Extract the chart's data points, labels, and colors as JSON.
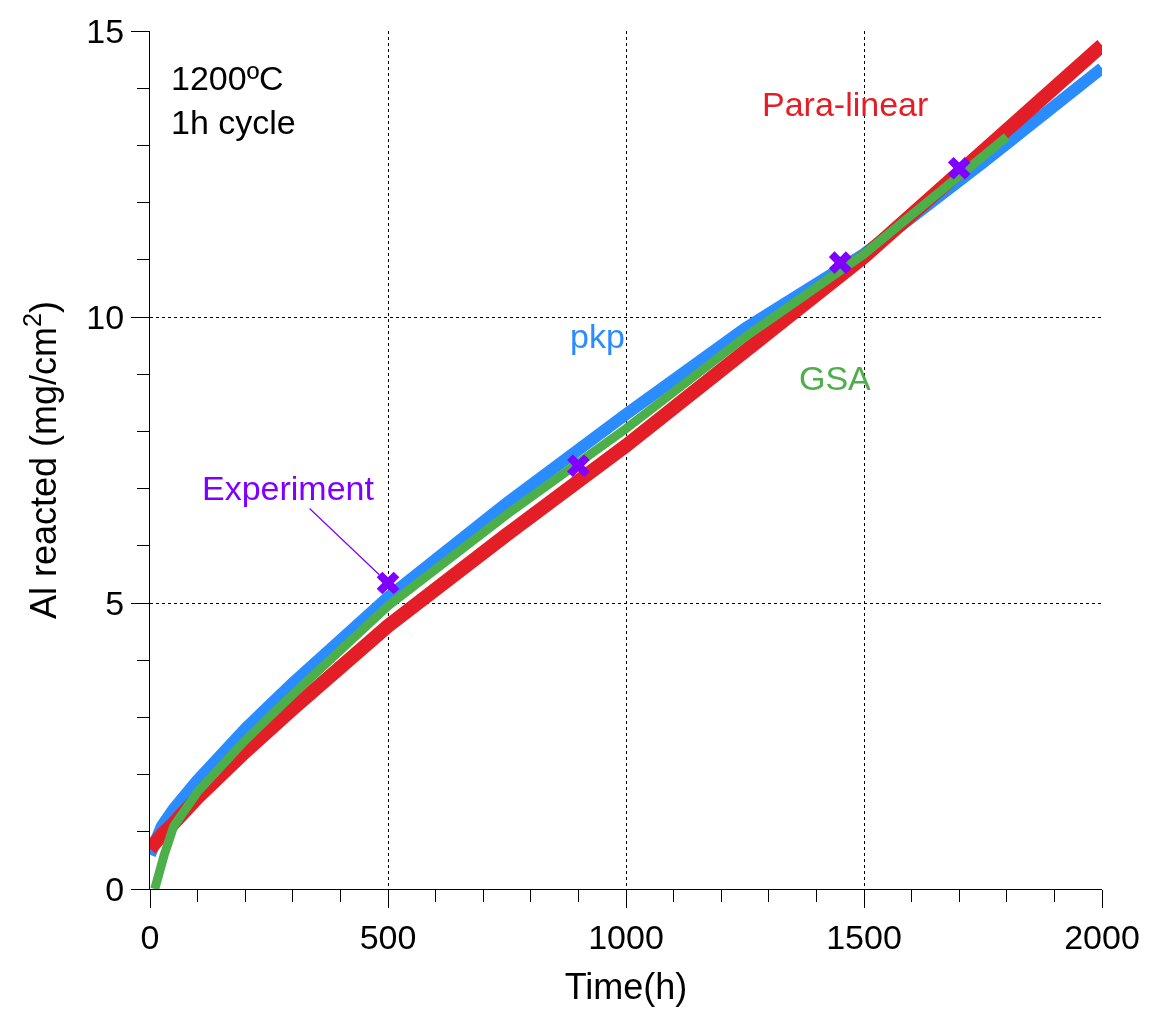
{
  "chart_data": {
    "type": "line",
    "xlabel": "Time(h)",
    "ylabel": "Al reacted (mg/cm$^{2}$)",
    "annotations": [
      "1200ºC\n1h cycle"
    ],
    "xlim": [
      0,
      2000
    ],
    "ylim": [
      0,
      15
    ],
    "xticks": [
      0,
      {
        "value": 100,
        "label": null
      },
      {
        "value": 200,
        "label": null
      },
      {
        "value": 300,
        "label": null
      },
      {
        "value": 400,
        "label": null
      },
      500,
      {
        "value": 600,
        "label": null
      },
      {
        "value": 700,
        "label": null
      },
      {
        "value": 800,
        "label": null
      },
      {
        "value": 900,
        "label": null
      },
      1000,
      {
        "value": 1100,
        "label": null
      },
      {
        "value": 1200,
        "label": null
      },
      {
        "value": 1300,
        "label": null
      },
      {
        "value": 1400,
        "label": null
      },
      1500,
      {
        "value": 1600,
        "label": null
      },
      {
        "value": 1700,
        "label": null
      },
      {
        "value": 1800,
        "label": null
      },
      {
        "value": 1900,
        "label": null
      },
      2000
    ],
    "yticks": [
      0,
      {
        "value": 1,
        "label": null
      },
      {
        "value": 2,
        "label": null
      },
      {
        "value": 3,
        "label": null
      },
      {
        "value": 4,
        "label": null
      },
      5,
      {
        "value": 6,
        "label": null
      },
      {
        "value": 7,
        "label": null
      },
      {
        "value": 8,
        "label": null
      },
      {
        "value": 9,
        "label": null
      },
      10,
      {
        "value": 11,
        "label": null
      },
      {
        "value": 12,
        "label": null
      },
      {
        "value": 13,
        "label": null
      },
      {
        "value": 14,
        "label": null
      },
      15
    ],
    "grid": true,
    "legend": false,
    "line_style": "solid",
    "series": [
      {
        "name": "pkp",
        "color": "#2a8cff",
        "marker": "none",
        "x": [
          0,
          25,
          50,
          100,
          200,
          300,
          500,
          750,
          1000,
          1250,
          1500,
          1750,
          2000
        ],
        "values": [
          0.6,
          1.1,
          1.4,
          1.9,
          2.8,
          3.6,
          5.1,
          6.75,
          8.3,
          9.8,
          11.1,
          12.7,
          14.35
        ]
      },
      {
        "name": "Para-linear",
        "color": "#e41e26",
        "marker": "none",
        "x": [
          0,
          25,
          50,
          100,
          200,
          300,
          500,
          750,
          1000,
          1250,
          1500,
          1750,
          2000
        ],
        "values": [
          0.7,
          0.95,
          1.15,
          1.6,
          2.4,
          3.15,
          4.6,
          6.2,
          7.75,
          9.4,
          11.05,
          12.9,
          14.75
        ]
      },
      {
        "name": "GSA",
        "color": "#4daf4a",
        "marker": "none",
        "x": [
          10,
          30,
          50,
          100,
          200,
          300,
          500,
          750,
          1000,
          1250,
          1500,
          1800
        ],
        "values": [
          0,
          0.6,
          1.1,
          1.7,
          2.6,
          3.4,
          4.95,
          6.55,
          8.05,
          9.65,
          11.1,
          13.15
        ]
      },
      {
        "name": "Experiment",
        "type": "scatter",
        "color": "#8000ff",
        "marker": "cross",
        "x": [
          500,
          900,
          1450,
          1700
        ],
        "values": [
          5.35,
          7.4,
          10.95,
          12.6
        ]
      }
    ]
  }
}
